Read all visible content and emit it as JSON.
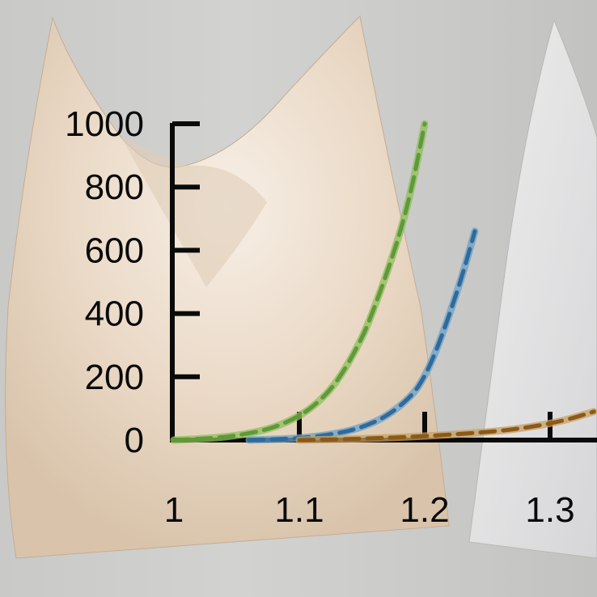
{
  "chart_data": {
    "type": "line",
    "xlabel": "",
    "ylabel": "",
    "xlim": [
      1,
      1.335
    ],
    "ylim": [
      0,
      1000
    ],
    "x_ticks": [
      "1",
      "1.1",
      "1.2",
      "1.3"
    ],
    "y_ticks": [
      "0",
      "200",
      "400",
      "600",
      "800",
      "1000"
    ],
    "grid": false,
    "series": [
      {
        "color": "#5f9a3a",
        "highlight": "#8fbf5a",
        "x": [
          1.0,
          1.04,
          1.07,
          1.09,
          1.11,
          1.13,
          1.15,
          1.16,
          1.17,
          1.18,
          1.19,
          1.2
        ],
        "y": [
          0,
          8,
          28,
          55,
          100,
          180,
          320,
          420,
          530,
          650,
          800,
          1000
        ]
      },
      {
        "color": "#2f6a9a",
        "highlight": "#6aa0c8",
        "x": [
          1.06,
          1.1,
          1.13,
          1.15,
          1.17,
          1.19,
          1.2,
          1.21,
          1.22,
          1.23,
          1.24
        ],
        "y": [
          0,
          5,
          20,
          40,
          75,
          140,
          200,
          290,
          400,
          520,
          660
        ]
      },
      {
        "color": "#8a5a1a",
        "highlight": "#c8a060",
        "x": [
          1.1,
          1.15,
          1.2,
          1.25,
          1.28,
          1.31,
          1.335
        ],
        "y": [
          0,
          4,
          12,
          25,
          38,
          60,
          90
        ]
      }
    ]
  }
}
